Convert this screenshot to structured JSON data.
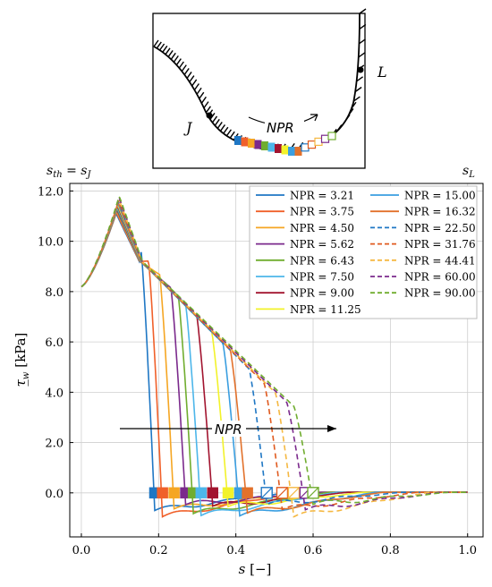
{
  "inset": {
    "label_J": "J",
    "label_L": "L",
    "arrow_label": "NPR"
  },
  "chart_data": {
    "type": "line",
    "top_left_label": "s_th = s_J",
    "top_right_label": "s_L",
    "xlabel": "s [−]",
    "ylabel": "τ_w [kPa]",
    "xlim": [
      -0.03,
      1.04
    ],
    "ylim": [
      -1.75,
      12.3
    ],
    "xticks": [
      "0.0",
      "0.2",
      "0.4",
      "0.6",
      "0.8",
      "1.0"
    ],
    "yticks": [
      "0.0",
      "2.0",
      "4.0",
      "6.0",
      "8.0",
      "10.0",
      "12.0"
    ],
    "grid": true,
    "legend_position": "top-right",
    "annotation": "NPR",
    "series": [
      {
        "name": "NPR = 3.21",
        "color": "#1f77c4",
        "dash": "solid",
        "s_sep": 0.19,
        "peak": 11.1
      },
      {
        "name": "NPR = 3.75",
        "color": "#f0602a",
        "dash": "solid",
        "s_sep": 0.21,
        "peak": 11.15
      },
      {
        "name": "NPR = 4.50",
        "color": "#f5a623",
        "dash": "solid",
        "s_sep": 0.24,
        "peak": 11.2
      },
      {
        "name": "NPR = 5.62",
        "color": "#7b2a8c",
        "dash": "solid",
        "s_sep": 0.27,
        "peak": 11.25
      },
      {
        "name": "NPR = 6.43",
        "color": "#70ad2f",
        "dash": "solid",
        "s_sep": 0.29,
        "peak": 11.3
      },
      {
        "name": "NPR = 7.50",
        "color": "#4db6ea",
        "dash": "solid",
        "s_sep": 0.31,
        "peak": 11.35
      },
      {
        "name": "NPR = 9.00",
        "color": "#a2142f",
        "dash": "solid",
        "s_sep": 0.34,
        "peak": 11.4
      },
      {
        "name": "NPR = 11.25",
        "color": "#f2f22a",
        "dash": "solid",
        "s_sep": 0.38,
        "peak": 11.45
      },
      {
        "name": "NPR = 15.00",
        "color": "#3a9ee0",
        "dash": "solid",
        "s_sep": 0.41,
        "peak": 11.5
      },
      {
        "name": "NPR = 16.32",
        "color": "#e2712b",
        "dash": "solid",
        "s_sep": 0.43,
        "peak": 11.55
      },
      {
        "name": "NPR = 22.50",
        "color": "#1f77c4",
        "dash": "dashed",
        "s_sep": 0.48,
        "peak": 11.6
      },
      {
        "name": "NPR = 31.76",
        "color": "#e05a1f",
        "dash": "dashed",
        "s_sep": 0.52,
        "peak": 11.65
      },
      {
        "name": "NPR = 44.41",
        "color": "#f5b841",
        "dash": "dashed",
        "s_sep": 0.55,
        "peak": 11.7
      },
      {
        "name": "NPR = 60.00",
        "color": "#7b2a8c",
        "dash": "dashed",
        "s_sep": 0.58,
        "peak": 11.75
      },
      {
        "name": "NPR = 90.00",
        "color": "#70ad2f",
        "dash": "dashed",
        "s_sep": 0.6,
        "peak": 11.8
      }
    ]
  }
}
